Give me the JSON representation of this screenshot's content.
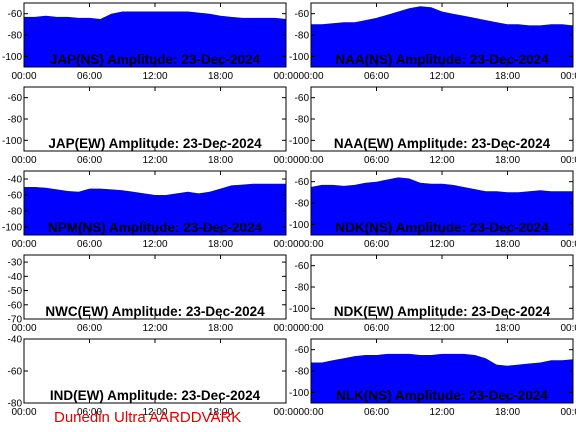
{
  "footer": "Dunedin Ultra AARDDVARK",
  "colors": {
    "fill": "#0000ff",
    "footer": "#e00000",
    "frame": "#000000",
    "background": "#ffffff"
  },
  "x_ticks": [
    "00:00",
    "06:00",
    "12:00",
    "18:00",
    "00:00"
  ],
  "chart_data": [
    {
      "type": "area",
      "title": "JAP(NS) Amplitude: 23-Dec-2024",
      "xlim": [
        0,
        24
      ],
      "ylim": [
        -110,
        -50
      ],
      "yticks": [
        -60,
        -80,
        -100
      ],
      "x": [
        0,
        1,
        2,
        3,
        4,
        5,
        6,
        7,
        8,
        9,
        10,
        11,
        12,
        13,
        14,
        15,
        16,
        17,
        18,
        19,
        20,
        21,
        22,
        23,
        24
      ],
      "values": [
        -63,
        -63,
        -62,
        -63,
        -63,
        -64,
        -64,
        -65,
        -60,
        -58,
        -58,
        -58,
        -58,
        -58,
        -58,
        -58,
        -59,
        -60,
        -62,
        -63,
        -64,
        -64,
        -64,
        -64,
        -65
      ]
    },
    {
      "type": "area",
      "title": "JAP(EW) Amplitude: 23-Dec-2024",
      "xlim": [
        0,
        24
      ],
      "ylim": [
        -110,
        -50
      ],
      "yticks": [
        -60,
        -80,
        -100
      ],
      "x": [],
      "values": []
    },
    {
      "type": "area",
      "title": "NAA(NS) Amplitude: 23-Dec-2024",
      "xlim": [
        0,
        24
      ],
      "ylim": [
        -110,
        -50
      ],
      "yticks": [
        -60,
        -80,
        -100
      ],
      "x": [
        0,
        1,
        2,
        3,
        4,
        5,
        6,
        7,
        8,
        9,
        10,
        11,
        12,
        13,
        14,
        15,
        16,
        17,
        18,
        19,
        20,
        21,
        22,
        23,
        24
      ],
      "values": [
        -70,
        -70,
        -69,
        -68,
        -68,
        -66,
        -64,
        -61,
        -58,
        -55,
        -53,
        -54,
        -58,
        -60,
        -62,
        -64,
        -66,
        -68,
        -70,
        -70,
        -71,
        -71,
        -70,
        -70,
        -71
      ]
    },
    {
      "type": "area",
      "title": "NAA(EW) Amplitude: 23-Dec-2024",
      "xlim": [
        0,
        24
      ],
      "ylim": [
        -110,
        -50
      ],
      "yticks": [
        -60,
        -80,
        -100
      ],
      "x": [],
      "values": []
    },
    {
      "type": "area",
      "title": "NPM(NS) Amplitude: 23-Dec-2024",
      "xlim": [
        0,
        24
      ],
      "ylim": [
        -110,
        -30
      ],
      "yticks": [
        -40,
        -60,
        -80,
        -100
      ],
      "x": [
        0,
        1,
        2,
        3,
        4,
        5,
        6,
        7,
        8,
        9,
        10,
        11,
        12,
        13,
        14,
        15,
        16,
        17,
        18,
        19,
        20,
        21,
        22,
        23,
        24
      ],
      "values": [
        -50,
        -50,
        -51,
        -53,
        -55,
        -56,
        -52,
        -52,
        -53,
        -54,
        -56,
        -58,
        -60,
        -60,
        -58,
        -56,
        -58,
        -56,
        -52,
        -48,
        -47,
        -46,
        -46,
        -46,
        -46
      ]
    },
    {
      "type": "area",
      "title": "NDK(NS) Amplitude: 23-Dec-2024",
      "xlim": [
        0,
        24
      ],
      "ylim": [
        -110,
        -50
      ],
      "yticks": [
        -60,
        -80,
        -100
      ],
      "x": [
        0,
        1,
        2,
        3,
        4,
        5,
        6,
        7,
        8,
        9,
        10,
        11,
        12,
        13,
        14,
        15,
        16,
        17,
        18,
        19,
        20,
        21,
        22,
        23,
        24
      ],
      "values": [
        -65,
        -63,
        -63,
        -64,
        -63,
        -61,
        -60,
        -58,
        -56,
        -57,
        -61,
        -62,
        -62,
        -63,
        -65,
        -67,
        -69,
        -69,
        -70,
        -70,
        -69,
        -68,
        -69,
        -69,
        -69
      ]
    },
    {
      "type": "area",
      "title": "NWC(EW) Amplitude: 23-Dec-2024",
      "xlim": [
        0,
        24
      ],
      "ylim": [
        -70,
        -25
      ],
      "yticks": [
        -30,
        -40,
        -50,
        -60,
        -70
      ],
      "x": [],
      "values": []
    },
    {
      "type": "area",
      "title": "NDK(EW) Amplitude: 23-Dec-2024",
      "xlim": [
        0,
        24
      ],
      "ylim": [
        -110,
        -50
      ],
      "yticks": [
        -60,
        -80,
        -100
      ],
      "x": [],
      "values": []
    },
    {
      "type": "area",
      "title": "IND(EW) Amplitude: 23-Dec-2024",
      "xlim": [
        0,
        24
      ],
      "ylim": [
        -80,
        -40
      ],
      "yticks": [
        -40,
        -60,
        -80
      ],
      "x": [],
      "values": []
    },
    {
      "type": "area",
      "title": "NLK(NS) Amplitude: 23-Dec-2024",
      "xlim": [
        0,
        24
      ],
      "ylim": [
        -110,
        -50
      ],
      "yticks": [
        -60,
        -80,
        -100
      ],
      "x": [
        0,
        1,
        2,
        3,
        4,
        5,
        6,
        7,
        8,
        9,
        10,
        11,
        12,
        13,
        14,
        15,
        16,
        17,
        18,
        19,
        20,
        21,
        22,
        23,
        24
      ],
      "values": [
        -72,
        -72,
        -70,
        -68,
        -66,
        -65,
        -65,
        -64,
        -64,
        -64,
        -65,
        -65,
        -64,
        -64,
        -64,
        -65,
        -68,
        -74,
        -75,
        -74,
        -73,
        -72,
        -70,
        -70,
        -69
      ]
    }
  ]
}
